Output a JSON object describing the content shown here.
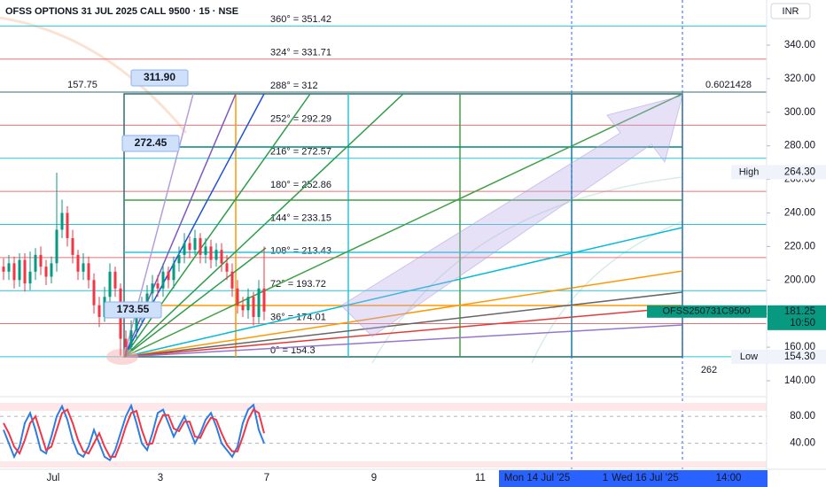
{
  "chart_data": [
    {
      "type": "candlestick",
      "title": "OFSS OPTIONS 31 JUL 2025 CALL 9500 · 15 · NSE",
      "currency": "INR",
      "up_color": "#089981",
      "down_color": "#f23645",
      "open": [
        208,
        205,
        210,
        200,
        212,
        198,
        205,
        215,
        208,
        202,
        210,
        230,
        240,
        225,
        215,
        205,
        210,
        200,
        185,
        178,
        190,
        205,
        195,
        165,
        160,
        170,
        178,
        185,
        192,
        198,
        195,
        205,
        200,
        210,
        215,
        222,
        218,
        225,
        215,
        220,
        212,
        218,
        210,
        205,
        195,
        185,
        182,
        190,
        178,
        195
      ],
      "high": [
        213,
        215,
        214,
        216,
        216,
        217,
        219,
        220,
        212,
        214,
        264,
        248,
        244,
        230,
        218,
        216,
        214,
        204,
        190,
        196,
        210,
        208,
        198,
        170,
        176,
        184,
        190,
        197,
        203,
        203,
        210,
        208,
        214,
        220,
        228,
        226,
        230,
        228,
        225,
        224,
        222,
        222,
        215,
        210,
        200,
        190,
        195,
        193,
        200,
        220
      ],
      "low": [
        200,
        200,
        195,
        196,
        193,
        194,
        200,
        203,
        197,
        198,
        205,
        225,
        220,
        210,
        200,
        200,
        195,
        180,
        172,
        175,
        185,
        190,
        155,
        154.3,
        158,
        165,
        173,
        180,
        187,
        190,
        190,
        195,
        195,
        205,
        210,
        213,
        215,
        210,
        210,
        207,
        208,
        205,
        200,
        190,
        180,
        178,
        177,
        173,
        174,
        176
      ],
      "close": [
        205,
        210,
        200,
        212,
        198,
        205,
        215,
        208,
        202,
        210,
        230,
        240,
        225,
        215,
        205,
        210,
        200,
        185,
        178,
        190,
        205,
        195,
        165,
        160,
        170,
        178,
        185,
        192,
        198,
        195,
        205,
        200,
        210,
        215,
        222,
        218,
        225,
        215,
        220,
        212,
        218,
        210,
        205,
        195,
        185,
        182,
        190,
        178,
        195,
        181.25
      ],
      "ylim": [
        130.5,
        366.9
      ],
      "yticks": [
        {
          "value": 140,
          "label": "140.00"
        },
        {
          "value": 160,
          "label": "160.00"
        },
        {
          "value": 180,
          "label": "180.00"
        },
        {
          "value": 200,
          "label": "200.00"
        },
        {
          "value": 220,
          "label": "220.00"
        },
        {
          "value": 240,
          "label": "240.00"
        },
        {
          "value": 260,
          "label": "260.00"
        },
        {
          "value": 280,
          "label": "280.00"
        },
        {
          "value": 300,
          "label": "300.00"
        },
        {
          "value": 320,
          "label": "320.00"
        },
        {
          "value": 340,
          "label": "340.00"
        }
      ],
      "price_labels": [
        {
          "name": "High",
          "value": 264.3,
          "label": "264.30"
        },
        {
          "name": "Low",
          "value": 154.3,
          "label": "154.30"
        }
      ],
      "last": {
        "symbol": "OFSS250731C9500",
        "value": 181.25,
        "label": "181.25",
        "time": "10:50",
        "color": "#089981"
      },
      "levels": [
        {
          "label": "360° = 351.42",
          "value": 351.42,
          "color": "#26c6da"
        },
        {
          "label": "324° = 331.71",
          "value": 331.71,
          "color": "#e57373"
        },
        {
          "label": "288° = 312",
          "value": 312,
          "color": "#2f6f73"
        },
        {
          "label": "252° = 292.29",
          "value": 292.29,
          "color": "#e57373"
        },
        {
          "label": "216° = 272.57",
          "value": 272.57,
          "color": "#26c6da"
        },
        {
          "label": "180° = 252.86",
          "value": 252.86,
          "color": "#e57373"
        },
        {
          "label": "144° = 233.15",
          "value": 233.15,
          "color": "#26c6da"
        },
        {
          "label": "108° = 213.43",
          "value": 213.43,
          "color": "#e57373"
        },
        {
          "label": "72° = 193.72",
          "value": 193.72,
          "color": "#26c6da"
        },
        {
          "label": "36° = 174.01",
          "value": 174.01,
          "color": "#e57373"
        },
        {
          "label": "0° = 154.3",
          "value": 154.3,
          "color": "#26c6da"
        }
      ],
      "annotations": [
        "157.75",
        "311.90",
        "272.45",
        "173.55",
        "0.6021428",
        "262"
      ],
      "x_labels": [
        "Jul",
        "3",
        "7",
        "9",
        "11"
      ],
      "crosshair_labels": [
        "Mon 14 Jul '25",
        "1",
        "Wed 16 Jul '25",
        "14:00"
      ]
    },
    {
      "type": "line",
      "series": [
        {
          "color": "#2f7de1",
          "values": [
            60,
            40,
            20,
            35,
            70,
            85,
            60,
            30,
            25,
            50,
            80,
            95,
            75,
            45,
            25,
            20,
            35,
            60,
            40,
            20,
            15,
            30,
            55,
            80,
            96,
            70,
            40,
            30,
            55,
            85,
            90,
            70,
            50,
            65,
            80,
            60,
            40,
            55,
            75,
            85,
            65,
            40,
            30,
            20,
            35,
            70,
            90,
            97,
            60,
            40
          ]
        },
        {
          "color": "#f23645",
          "values": [
            70,
            55,
            35,
            25,
            45,
            70,
            80,
            55,
            30,
            35,
            60,
            85,
            90,
            70,
            45,
            28,
            25,
            40,
            55,
            35,
            20,
            20,
            40,
            65,
            85,
            88,
            60,
            38,
            40,
            65,
            82,
            82,
            62,
            58,
            72,
            72,
            50,
            48,
            65,
            78,
            75,
            55,
            38,
            28,
            28,
            50,
            75,
            90,
            85,
            55
          ]
        }
      ],
      "ylim": [
        8,
        100
      ],
      "yticks": [
        {
          "value": 80,
          "label": "80.00"
        },
        {
          "value": 40,
          "label": "40.00"
        }
      ]
    }
  ]
}
